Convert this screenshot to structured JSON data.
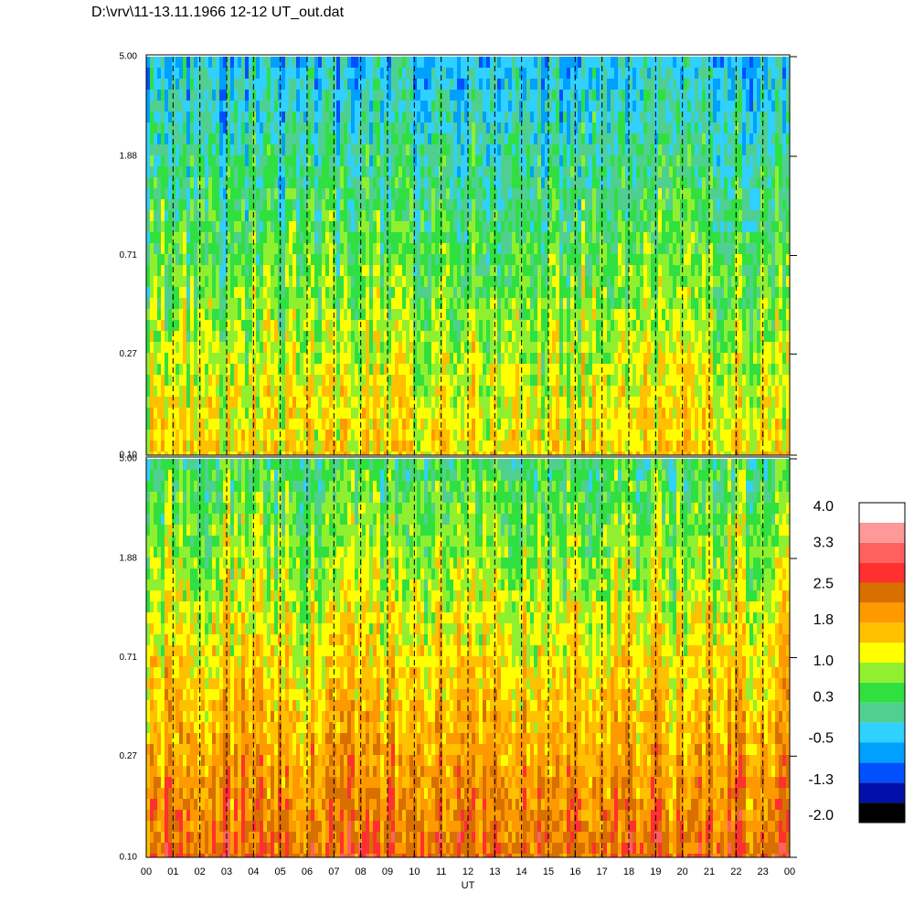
{
  "title": "D:\\vrv\\11-13.11.1966  12-12 UT_out.dat",
  "chart_data": [
    {
      "type": "spectrogram",
      "log_y": true,
      "ylim": [
        0.1,
        5
      ],
      "yticks": [
        {
          "value": 0.1,
          "label": "0.10"
        },
        0.27,
        0.71,
        1.88,
        {
          "value": 5,
          "label": "5.00"
        }
      ]
    },
    {
      "type": "spectrogram",
      "log_y": true,
      "ylim": [
        0.1,
        5
      ],
      "yticks": [
        {
          "value": 0.1,
          "label": "0.10"
        },
        0.27,
        0.71,
        1.88,
        {
          "value": 5,
          "label": "5.00"
        }
      ],
      "xlim": [
        0,
        24
      ],
      "xlabel": "UT",
      "xticks": [
        {
          "value": 0,
          "label": "00"
        },
        {
          "value": 1,
          "label": "01"
        },
        {
          "value": 2,
          "label": "02"
        },
        {
          "value": 3,
          "label": "03"
        },
        {
          "value": 4,
          "label": "04"
        },
        {
          "value": 5,
          "label": "05"
        },
        {
          "value": 6,
          "label": "06"
        },
        {
          "value": 7,
          "label": "07"
        },
        {
          "value": 8,
          "label": "08"
        },
        {
          "value": 9,
          "label": "09"
        },
        10,
        11,
        12,
        13,
        14,
        15,
        16,
        17,
        18,
        19,
        20,
        21,
        22,
        23,
        {
          "value": 24,
          "label": "00"
        }
      ]
    },
    {
      "type": "colorbar",
      "lim": [
        -2,
        4
      ],
      "colors": [
        "#000000",
        "#0010a8",
        "#0050ff",
        "#00a0ff",
        "#30d0ff",
        "#50d090",
        "#30e040",
        "#90f030",
        "#ffff00",
        "#ffc000",
        "#ff9900",
        "#d87000",
        "#ff3030",
        "#ff6060",
        "#ff9898",
        "#ffffff"
      ],
      "ticks": [
        {
          "value": 4,
          "label": "4.0"
        },
        3.3,
        2.5,
        1.8,
        {
          "value": 1,
          "label": "1.0"
        },
        0.3,
        -0.5,
        -1.3,
        {
          "value": -2,
          "label": "-2.0"
        }
      ]
    }
  ]
}
